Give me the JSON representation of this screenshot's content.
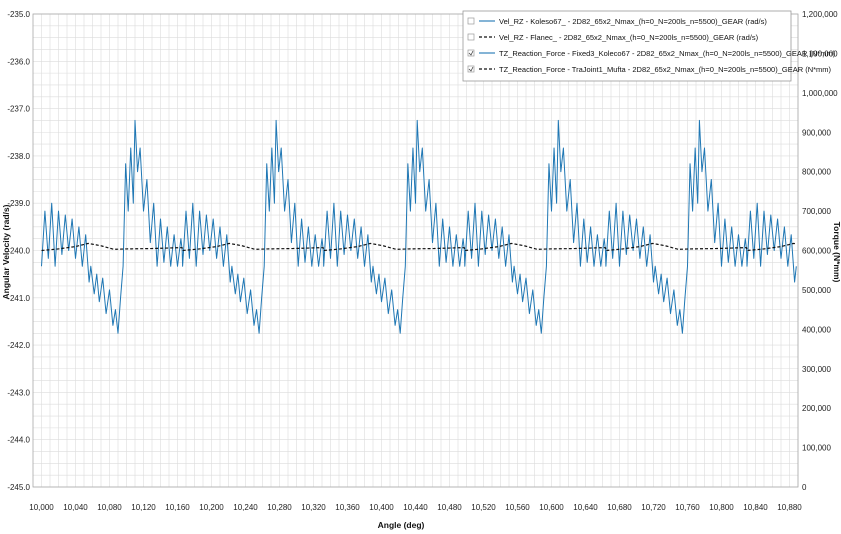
{
  "chart_data": {
    "type": "line",
    "xlabel": "Angle (deg)",
    "ylabel_left": "Angular Velocity (rad/s)",
    "ylabel_right": "Torque (N*mm)",
    "xlim": [
      9990,
      10890
    ],
    "ylim_left": [
      -245.0,
      -235.0
    ],
    "ylim_right": [
      0,
      1200000
    ],
    "x_ticks": [
      "10,000",
      "10,040",
      "10,080",
      "10,120",
      "10,160",
      "10,200",
      "10,240",
      "10,280",
      "10,320",
      "10,360",
      "10,400",
      "10,440",
      "10,480",
      "10,520",
      "10,560",
      "10,600",
      "10,640",
      "10,680",
      "10,720",
      "10,760",
      "10,800",
      "10,840",
      "10,880"
    ],
    "y_left_ticks": [
      "-235.0",
      "-236.0",
      "-237.0",
      "-238.0",
      "-239.0",
      "-240.0",
      "-241.0",
      "-242.0",
      "-243.0",
      "-244.0",
      "-245.0"
    ],
    "y_right_ticks": [
      "1,200,000",
      "1,100,000",
      "1,000,000",
      "900,000",
      "800,000",
      "700,000",
      "600,000",
      "500,000",
      "400,000",
      "300,000",
      "200,000",
      "100,000",
      "0"
    ],
    "grid": true,
    "legend_placement": "top-right",
    "colors": {
      "solid_series": "#1f77b4",
      "dashed_series": "#111111",
      "grid": "#dcdcdc",
      "legend_checkbox": "#9a9a9a"
    },
    "legend": [
      {
        "name": "Vel_RZ - Koleso67_ - 2D82_65x2_Nmax_(h=0_N=200ls_n=5500)_GEAR (rad/s)",
        "style": "solid",
        "checked": false
      },
      {
        "name": "Vel_RZ - Flanec_ - 2D82_65x2_Nmax_(h=0_N=200ls_n=5500)_GEAR (rad/s)",
        "style": "dashed",
        "checked": false
      },
      {
        "name": "TZ_Reaction_Force - Fixed3_Koleco67 - 2D82_65x2_Nmax_(h=0_N=200ls_n=5500)_GEAR (N*mm)",
        "style": "solid",
        "checked": true
      },
      {
        "name": "TZ_Reaction_Force - TraJoint1_Mufta - 2D82_65x2_Nmax_(h=0_N=200ls_n=5500)_GEAR (N*mm)",
        "style": "dashed",
        "checked": true
      }
    ],
    "series": [
      {
        "name": "TZ_Reaction_Force - Fixed3_Koleco67 - 2D82_65x2_Nmax_(h=0_N=200ls_n=5500)_GEAR (N*mm)",
        "axis": "right",
        "style": "solid",
        "period": 166,
        "mean": 600000,
        "keypoints": [
          [
            10000,
            560000
          ],
          [
            10004,
            700000
          ],
          [
            10008,
            580000
          ],
          [
            10012,
            720000
          ],
          [
            10016,
            560000
          ],
          [
            10020,
            700000
          ],
          [
            10024,
            590000
          ],
          [
            10028,
            690000
          ],
          [
            10032,
            600000
          ],
          [
            10036,
            680000
          ],
          [
            10040,
            580000
          ],
          [
            10044,
            660000
          ],
          [
            10048,
            560000
          ],
          [
            10052,
            640000
          ],
          [
            10056,
            520000
          ],
          [
            10058,
            560000
          ],
          [
            10062,
            490000
          ],
          [
            10065,
            540000
          ],
          [
            10068,
            470000
          ],
          [
            10072,
            530000
          ],
          [
            10076,
            440000
          ],
          [
            10080,
            500000
          ],
          [
            10084,
            410000
          ],
          [
            10087,
            450000
          ],
          [
            10090,
            390000
          ],
          [
            10093,
            480000
          ],
          [
            10096,
            560000
          ],
          [
            10099,
            820000
          ],
          [
            10102,
            700000
          ],
          [
            10105,
            860000
          ],
          [
            10108,
            720000
          ],
          [
            10110,
            930000
          ],
          [
            10113,
            800000
          ],
          [
            10116,
            860000
          ],
          [
            10120,
            700000
          ],
          [
            10124,
            780000
          ],
          [
            10128,
            620000
          ],
          [
            10132,
            720000
          ],
          [
            10136,
            560000
          ],
          [
            10140,
            680000
          ],
          [
            10144,
            570000
          ],
          [
            10148,
            660000
          ],
          [
            10152,
            560000
          ],
          [
            10156,
            640000
          ],
          [
            10160,
            560000
          ],
          [
            10164,
            630000
          ],
          [
            10168,
            550000
          ],
          [
            10172,
            630000
          ],
          [
            10176,
            550000
          ],
          [
            10180,
            620000
          ],
          [
            10184,
            560000
          ],
          [
            10188,
            640000
          ],
          [
            10192,
            570000
          ],
          [
            10196,
            660000
          ],
          [
            10200,
            580000
          ],
          [
            10204,
            680000
          ],
          [
            10208,
            600000
          ],
          [
            10212,
            690000
          ],
          [
            10216,
            610000
          ],
          [
            10220,
            700000
          ],
          [
            10224,
            620000
          ],
          [
            10228,
            640000
          ],
          [
            10232,
            560000
          ]
        ]
      },
      {
        "name": "TZ_Reaction_Force - TraJoint1_Mufta - 2D82_65x2_Nmax_(h=0_N=200ls_n=5500)_GEAR (N*mm)",
        "axis": "right",
        "style": "dashed",
        "period": 166,
        "keypoints": [
          [
            10000,
            600000
          ],
          [
            10020,
            604000
          ],
          [
            10040,
            610000
          ],
          [
            10055,
            618000
          ],
          [
            10070,
            612000
          ],
          [
            10085,
            603000
          ],
          [
            10100,
            604000
          ],
          [
            10130,
            605000
          ],
          [
            10160,
            607000
          ],
          [
            10190,
            608000
          ],
          [
            10210,
            610000
          ],
          [
            10225,
            617000
          ],
          [
            10235,
            618000
          ],
          [
            10250,
            610000
          ],
          [
            10266,
            600000
          ]
        ]
      }
    ]
  }
}
